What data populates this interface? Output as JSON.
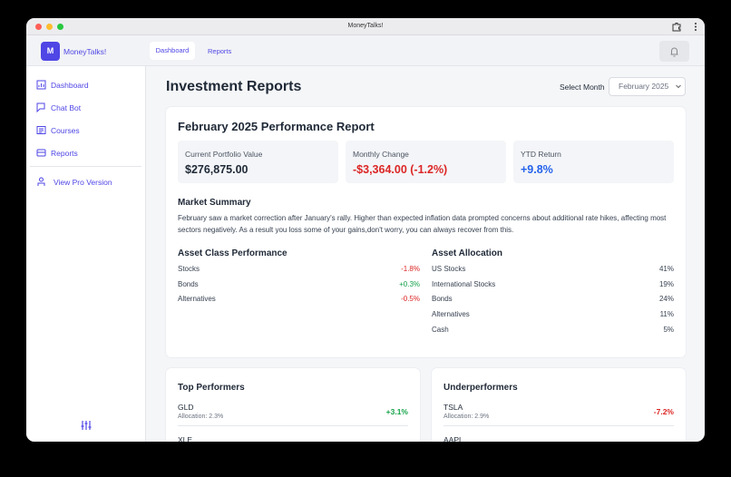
{
  "window_title": "MoneyTalks!",
  "header": {
    "logo": "M",
    "app_name": "MoneyTalks!",
    "tabs": [
      "Dashboard",
      "Reports"
    ]
  },
  "sidebar": {
    "items": [
      "Dashboard",
      "Chat Bot",
      "Courses",
      "Reports"
    ],
    "pro": "View Pro Version"
  },
  "page": {
    "title": "Investment Reports",
    "select_label": "Select Month",
    "select_value": "February 2025"
  },
  "report": {
    "title": "February 2025 Performance Report",
    "stats": [
      {
        "label": "Current Portfolio Value",
        "value": "$276,875.00"
      },
      {
        "label": "Monthly Change",
        "value": "-$3,364.00 (-1.2%)"
      },
      {
        "label": "YTD Return",
        "value": "+9.8%"
      }
    ],
    "summary_title": "Market Summary",
    "summary": "February saw a market correction after January's rally. Higher than expected inflation data prompted concerns about additional rate hikes, affecting most sectors negatively. As a result you loss some of your gains,don't worry, you can always recover from this.",
    "asset_class": {
      "title": "Asset Class Performance",
      "rows": [
        [
          "Stocks",
          "-1.8%"
        ],
        [
          "Bonds",
          "+0.3%"
        ],
        [
          "Alternatives",
          "-0.5%"
        ]
      ]
    },
    "allocation": {
      "title": "Asset Allocation",
      "rows": [
        [
          "US Stocks",
          "41%"
        ],
        [
          "International Stocks",
          "19%"
        ],
        [
          "Bonds",
          "24%"
        ],
        [
          "Alternatives",
          "11%"
        ],
        [
          "Cash",
          "5%"
        ]
      ]
    }
  },
  "top": {
    "title": "Top Performers",
    "rows": [
      {
        "ticker": "GLD",
        "allocation": "Allocation: 2.3%",
        "change": "+3.1%"
      },
      {
        "ticker": "XLE"
      }
    ]
  },
  "under": {
    "title": "Underperformers",
    "rows": [
      {
        "ticker": "TSLA",
        "allocation": "Allocation: 2.9%",
        "change": "-7.2%"
      },
      {
        "ticker": "AAPL"
      }
    ]
  }
}
